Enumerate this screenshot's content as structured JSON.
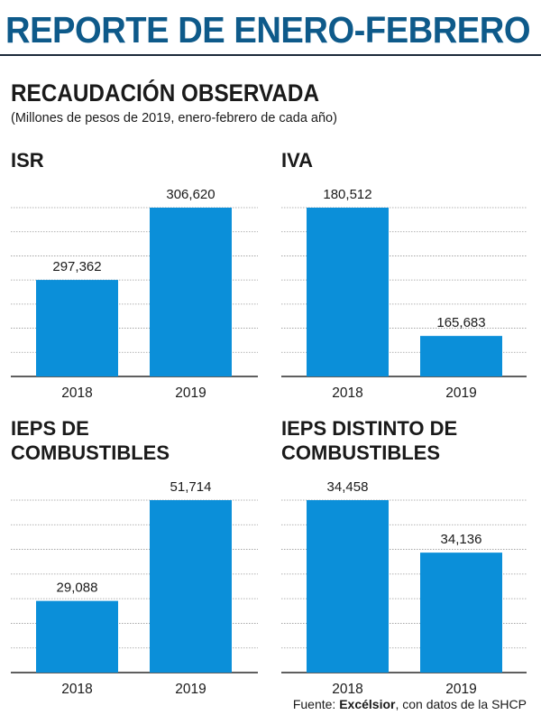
{
  "header": {
    "banner": "REPORTE DE ENERO-FEBRERO",
    "title": "RECAUDACIÓN OBSERVADA",
    "subtitle": "(Millones de pesos de 2019, enero-febrero de cada año)"
  },
  "source": {
    "prefix": "Fuente: ",
    "bold": "Excélsior",
    "suffix": ", con datos de la SHCP"
  },
  "colors": {
    "bar": "#0b8fd9",
    "grid": "#9a9a9a",
    "axis": "#2a2a2a",
    "banner": "#0e5a8a"
  },
  "chart_data": [
    {
      "type": "bar",
      "title_lines": [
        "ISR"
      ],
      "categories": [
        "2018",
        "2019"
      ],
      "values": [
        297362,
        306620
      ],
      "value_labels": [
        "297,362",
        "306,620"
      ],
      "grid": true
    },
    {
      "type": "bar",
      "title_lines": [
        "IVA"
      ],
      "categories": [
        "2018",
        "2019"
      ],
      "values": [
        180512,
        165683
      ],
      "value_labels": [
        "180,512",
        "165,683"
      ],
      "grid": true
    },
    {
      "type": "bar",
      "title_lines": [
        "IEPS DE",
        "COMBUSTIBLES"
      ],
      "categories": [
        "2018",
        "2019"
      ],
      "values": [
        29088,
        51714
      ],
      "value_labels": [
        "29,088",
        "51,714"
      ],
      "grid": true
    },
    {
      "type": "bar",
      "title_lines": [
        "IEPS DISTINTO DE",
        "COMBUSTIBLES"
      ],
      "categories": [
        "2018",
        "2019"
      ],
      "values": [
        34458,
        34136
      ],
      "value_labels": [
        "34,458",
        "34,136"
      ],
      "grid": true
    }
  ]
}
